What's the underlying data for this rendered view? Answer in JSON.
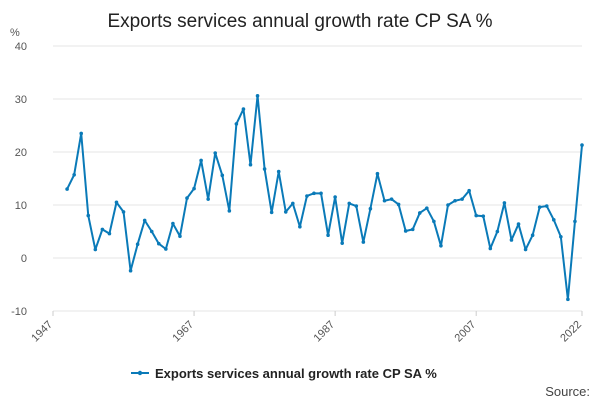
{
  "chart_data": {
    "type": "line",
    "title": "Exports services annual growth rate CP SA %",
    "ylabel": "%",
    "xlabel": "",
    "ylim": [
      -10,
      40
    ],
    "yticks": [
      -10,
      0,
      10,
      20,
      30,
      40
    ],
    "xlim": [
      1947,
      2022
    ],
    "xticks": [
      "1947",
      "1967",
      "1987",
      "2007",
      "2022"
    ],
    "grid": true,
    "legend_position": "bottom",
    "series": [
      {
        "name": "Exports services annual growth rate CP SA %",
        "color": "#0a7ab8",
        "x": [
          1949,
          1950,
          1951,
          1952,
          1953,
          1954,
          1955,
          1956,
          1957,
          1958,
          1959,
          1960,
          1961,
          1962,
          1963,
          1964,
          1965,
          1966,
          1967,
          1968,
          1969,
          1970,
          1971,
          1972,
          1973,
          1974,
          1975,
          1976,
          1977,
          1978,
          1979,
          1980,
          1981,
          1982,
          1983,
          1984,
          1985,
          1986,
          1987,
          1988,
          1989,
          1990,
          1991,
          1992,
          1993,
          1994,
          1995,
          1996,
          1997,
          1998,
          1999,
          2000,
          2001,
          2002,
          2003,
          2004,
          2005,
          2006,
          2007,
          2008,
          2009,
          2010,
          2011,
          2012,
          2013,
          2014,
          2015,
          2016,
          2017,
          2018,
          2019,
          2020,
          2021,
          2022
        ],
        "values": [
          13.0,
          15.7,
          23.5,
          8.0,
          1.6,
          5.4,
          4.6,
          10.5,
          8.7,
          -2.4,
          2.6,
          7.1,
          5.0,
          2.7,
          1.7,
          6.5,
          4.1,
          11.3,
          13.1,
          18.4,
          11.1,
          19.8,
          15.6,
          8.9,
          25.3,
          28.1,
          17.6,
          30.6,
          16.8,
          8.6,
          16.3,
          8.7,
          10.3,
          5.9,
          11.7,
          12.2,
          12.2,
          4.3,
          11.5,
          2.8,
          10.3,
          9.8,
          3.0,
          9.3,
          15.9,
          10.8,
          11.1,
          10.1,
          5.1,
          5.4,
          8.5,
          9.4,
          6.9,
          2.3,
          10.0,
          10.8,
          11.1,
          12.7,
          8.0,
          7.9,
          1.8,
          5.0,
          10.4,
          3.4,
          6.4,
          1.6,
          4.3,
          9.6,
          9.8,
          7.2,
          4.0,
          -7.8,
          6.9,
          21.3
        ]
      }
    ],
    "legend": {
      "label": "Exports services annual growth rate CP SA %"
    },
    "source_label": "Source:"
  }
}
